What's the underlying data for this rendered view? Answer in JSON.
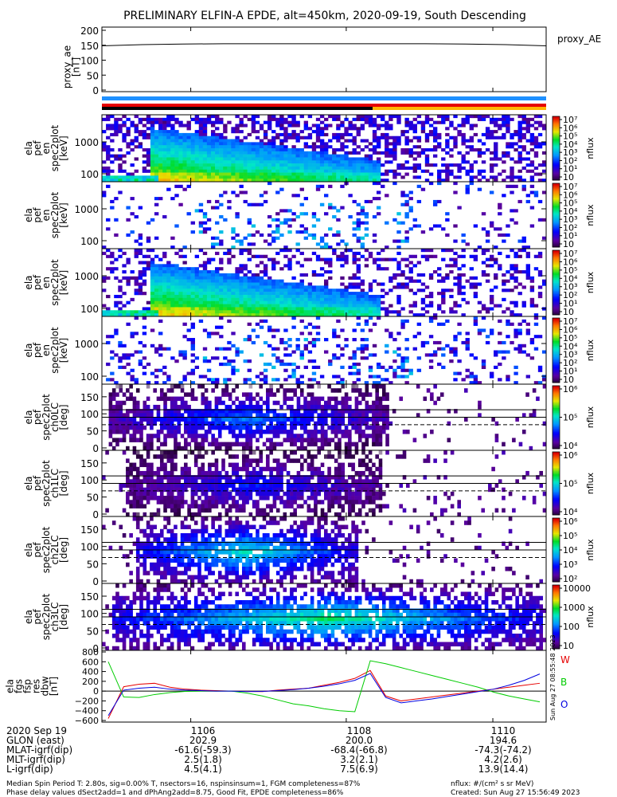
{
  "title": "PRELIMINARY ELFIN-A EPDE, alt=450km, 2020-09-19, South Descending",
  "colors": {
    "bar_blue": "#1e90ff",
    "bar_red": "#e60000",
    "bar_black": "#000000",
    "bar_yellow": "#ffb400",
    "series_red": "#e60000",
    "series_green": "#00cc00",
    "series_blue": "#0000e0"
  },
  "chart_data": {
    "type": "heatmap",
    "x_ticks": [
      "1106",
      "1108",
      "1110"
    ],
    "panels": [
      {
        "id": "proxy_ae",
        "type": "line",
        "ylabel": [
          "proxy_ae",
          "[nT]"
        ],
        "ylim": [
          0,
          200
        ],
        "yticks": [
          "0",
          "50",
          "100",
          "150",
          "200"
        ],
        "right_label": "proxy_AE",
        "series": [
          {
            "values": [
              148,
              152,
              154,
              155,
              155,
              155,
              155,
              155,
              155,
              154,
              152,
              148
            ]
          }
        ]
      },
      {
        "id": "en-omni",
        "ylabel": [
          "ela",
          "pef",
          "en",
          "spec2plot",
          "[keV]"
        ],
        "yticks": [
          "100",
          "1000"
        ],
        "colorbar_ticks": [
          "10",
          "10¹",
          "10²",
          "10³",
          "10⁴",
          "10⁵",
          "10⁶",
          "10⁷"
        ],
        "colorbar_label": "nflux"
      },
      {
        "id": "en-precip",
        "ylabel": [
          "ela",
          "pef",
          "en",
          "spec2plot",
          "[keV]"
        ],
        "yticks": [
          "100",
          "1000"
        ],
        "colorbar_ticks": [
          "10",
          "10¹",
          "10²",
          "10³",
          "10⁴",
          "10⁵",
          "10⁶",
          "10⁷"
        ],
        "colorbar_label": "nflux"
      },
      {
        "id": "en-perp",
        "ylabel": [
          "ela",
          "pef",
          "en",
          "spec2plot",
          "[keV]"
        ],
        "yticks": [
          "100",
          "1000"
        ],
        "colorbar_ticks": [
          "10",
          "10¹",
          "10²",
          "10³",
          "10⁴",
          "10⁵",
          "10⁶",
          "10⁷"
        ],
        "colorbar_label": "nflux"
      },
      {
        "id": "en-back",
        "ylabel": [
          "ela",
          "pef",
          "en",
          "spec2plot",
          "[keV]"
        ],
        "yticks": [
          "100",
          "1000"
        ],
        "colorbar_ticks": [
          "10",
          "10¹",
          "10²",
          "10³",
          "10⁴",
          "10⁵",
          "10⁶",
          "10⁷"
        ],
        "colorbar_label": "nflux"
      },
      {
        "id": "ch0LC",
        "ylabel": [
          "ela",
          "pef",
          "spec2plot",
          "ch0LC",
          "[deg]"
        ],
        "ylim": [
          0,
          180
        ],
        "yticks": [
          "0",
          "50",
          "100",
          "150"
        ],
        "colorbar_ticks": [
          "10⁴",
          "10⁵",
          "10⁶"
        ],
        "colorbar_label": "nflux"
      },
      {
        "id": "ch1LC",
        "ylabel": [
          "ela",
          "pef",
          "spec2plot",
          "ch1LC",
          "[deg]"
        ],
        "ylim": [
          0,
          180
        ],
        "yticks": [
          "0",
          "50",
          "100",
          "150"
        ],
        "colorbar_ticks": [
          "10⁴",
          "10⁵",
          "10⁶"
        ],
        "colorbar_label": "nflux"
      },
      {
        "id": "ch2LC",
        "ylabel": [
          "ela",
          "pef",
          "spec2plot",
          "ch2LC",
          "[deg]"
        ],
        "ylim": [
          0,
          180
        ],
        "yticks": [
          "0",
          "50",
          "100",
          "150"
        ],
        "colorbar_ticks": [
          "10²",
          "10³",
          "10⁴",
          "10⁵",
          "10⁶"
        ],
        "colorbar_label": "nflux"
      },
      {
        "id": "ch3LC",
        "ylabel": [
          "ela",
          "pef",
          "spec2plot",
          "ch3LC",
          "[deg]"
        ],
        "ylim": [
          0,
          180
        ],
        "yticks": [
          "0",
          "50",
          "100",
          "150"
        ],
        "colorbar_ticks": [
          "10",
          "100",
          "1000",
          "10000"
        ],
        "colorbar_label": "nflux"
      },
      {
        "id": "fgm",
        "type": "line",
        "ylabel": [
          "ela",
          "fgs",
          "fsp",
          "res",
          "dbw",
          "[nT]"
        ],
        "ylim": [
          -600,
          800
        ],
        "yticks": [
          "800",
          "600",
          "400",
          "200",
          "0",
          "−200",
          "−400",
          "−600"
        ],
        "legend": [
          "W",
          "B",
          "O"
        ],
        "timestamp": "Sun Aug 27 08:55:48 2023",
        "series": [
          {
            "name": "W",
            "color": "red",
            "values": [
              -560,
              90,
              140,
              160,
              80,
              40,
              20,
              10,
              0,
              -5,
              -10,
              20,
              40,
              60,
              120,
              180,
              260,
              420,
              -100,
              -200,
              -160,
              -120,
              -80,
              -40,
              0,
              40,
              80,
              120,
              160
            ]
          },
          {
            "name": "B",
            "color": "green",
            "values": [
              600,
              -120,
              -130,
              -70,
              -30,
              -5,
              0,
              0,
              0,
              -40,
              -100,
              -180,
              -260,
              -300,
              -360,
              -400,
              -420,
              620,
              560,
              480,
              400,
              320,
              240,
              160,
              80,
              -20,
              -100,
              -160,
              -220
            ]
          },
          {
            "name": "O",
            "color": "blue",
            "values": [
              -500,
              20,
              60,
              80,
              40,
              20,
              10,
              0,
              0,
              -10,
              -5,
              10,
              30,
              60,
              100,
              150,
              220,
              360,
              -130,
              -240,
              -200,
              -160,
              -110,
              -60,
              -10,
              40,
              120,
              220,
              350
            ]
          }
        ]
      }
    ]
  },
  "ephemeris": {
    "labels": [
      "2020 Sep 19",
      "GLON (east)",
      "MLAT-igrf(dip)",
      "MLT-igrf(dip)",
      "L-igrf(dip)"
    ],
    "columns": [
      [
        "1106",
        "202.9",
        "-61.6(-59.3)",
        "2.5(1.8)",
        "4.5(4.1)"
      ],
      [
        "1108",
        "200.0",
        "-68.4(-66.8)",
        "3.2(2.1)",
        "7.5(6.9)"
      ],
      [
        "1110",
        "194.6",
        "-74.3(-74.2)",
        "4.2(2.6)",
        "13.9(14.4)"
      ]
    ]
  },
  "footer": {
    "line1_left": "Median Spin Period T: 2.80s, sig=0.00% T, nsectors=16, nspinsinsum=1, FGM completeness=87%",
    "line2_left": "Phase delay values dSect2add=1 and dPhAng2add=8.75, Good Fit, EPDE completeness=86%",
    "line1_right": "nflux: #/(cm² s sr MeV)",
    "line2_right": "Created: Sun Aug 27 15:56:49 2023"
  }
}
